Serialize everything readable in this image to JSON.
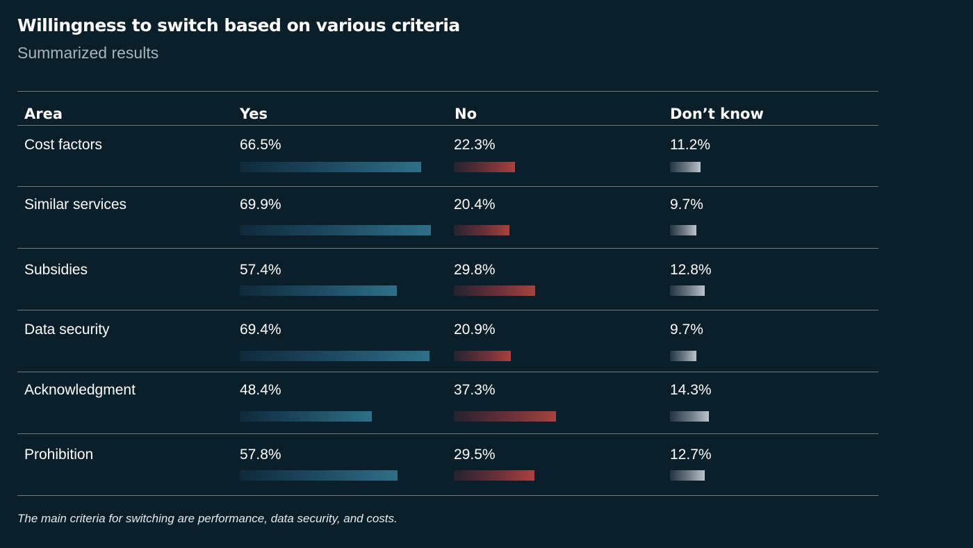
{
  "title": "Willingness to switch based on various criteria",
  "subtitle": "Summarized results",
  "footnote": "The main criteria for switching are performance, data security, and costs.",
  "colors": {
    "background": "#0b1f2b",
    "yes_bar": "#2e7088",
    "no_bar": "#a7433e",
    "dont_know_bar": "#bcc3ca",
    "rule": "#6c7c86"
  },
  "table": {
    "headers": {
      "area": "Area",
      "yes": "Yes",
      "no": "No",
      "dont_know": "Don’t know"
    }
  },
  "chart_data": {
    "type": "table",
    "title": "Willingness to switch based on various criteria",
    "subtitle": "Summarized results",
    "columns": [
      "Area",
      "Yes",
      "No",
      "Don’t know"
    ],
    "rows": [
      {
        "area": "Cost factors",
        "yes": 66.5,
        "no": 22.3,
        "dont_know": 11.2,
        "yes_label": "66.5%",
        "no_label": "22.3%",
        "dont_know_label": "11.2%"
      },
      {
        "area": "Similar services",
        "yes": 69.9,
        "no": 20.4,
        "dont_know": 9.7,
        "yes_label": "69.9%",
        "no_label": "20.4%",
        "dont_know_label": "9.7%"
      },
      {
        "area": "Subsidies",
        "yes": 57.4,
        "no": 29.8,
        "dont_know": 12.8,
        "yes_label": "57.4%",
        "no_label": "29.8%",
        "dont_know_label": "12.8%"
      },
      {
        "area": "Data security",
        "yes": 69.4,
        "no": 20.9,
        "dont_know": 9.7,
        "yes_label": "69.4%",
        "no_label": "20.9%",
        "dont_know_label": "9.7%"
      },
      {
        "area": "Acknowledgment",
        "yes": 48.4,
        "no": 37.3,
        "dont_know": 14.3,
        "yes_label": "48.4%",
        "no_label": "37.3%",
        "dont_know_label": "14.3%"
      },
      {
        "area": "Prohibition",
        "yes": 57.8,
        "no": 29.5,
        "dont_know": 12.7,
        "yes_label": "57.8%",
        "no_label": "29.5%",
        "dont_know_label": "12.7%"
      }
    ]
  }
}
